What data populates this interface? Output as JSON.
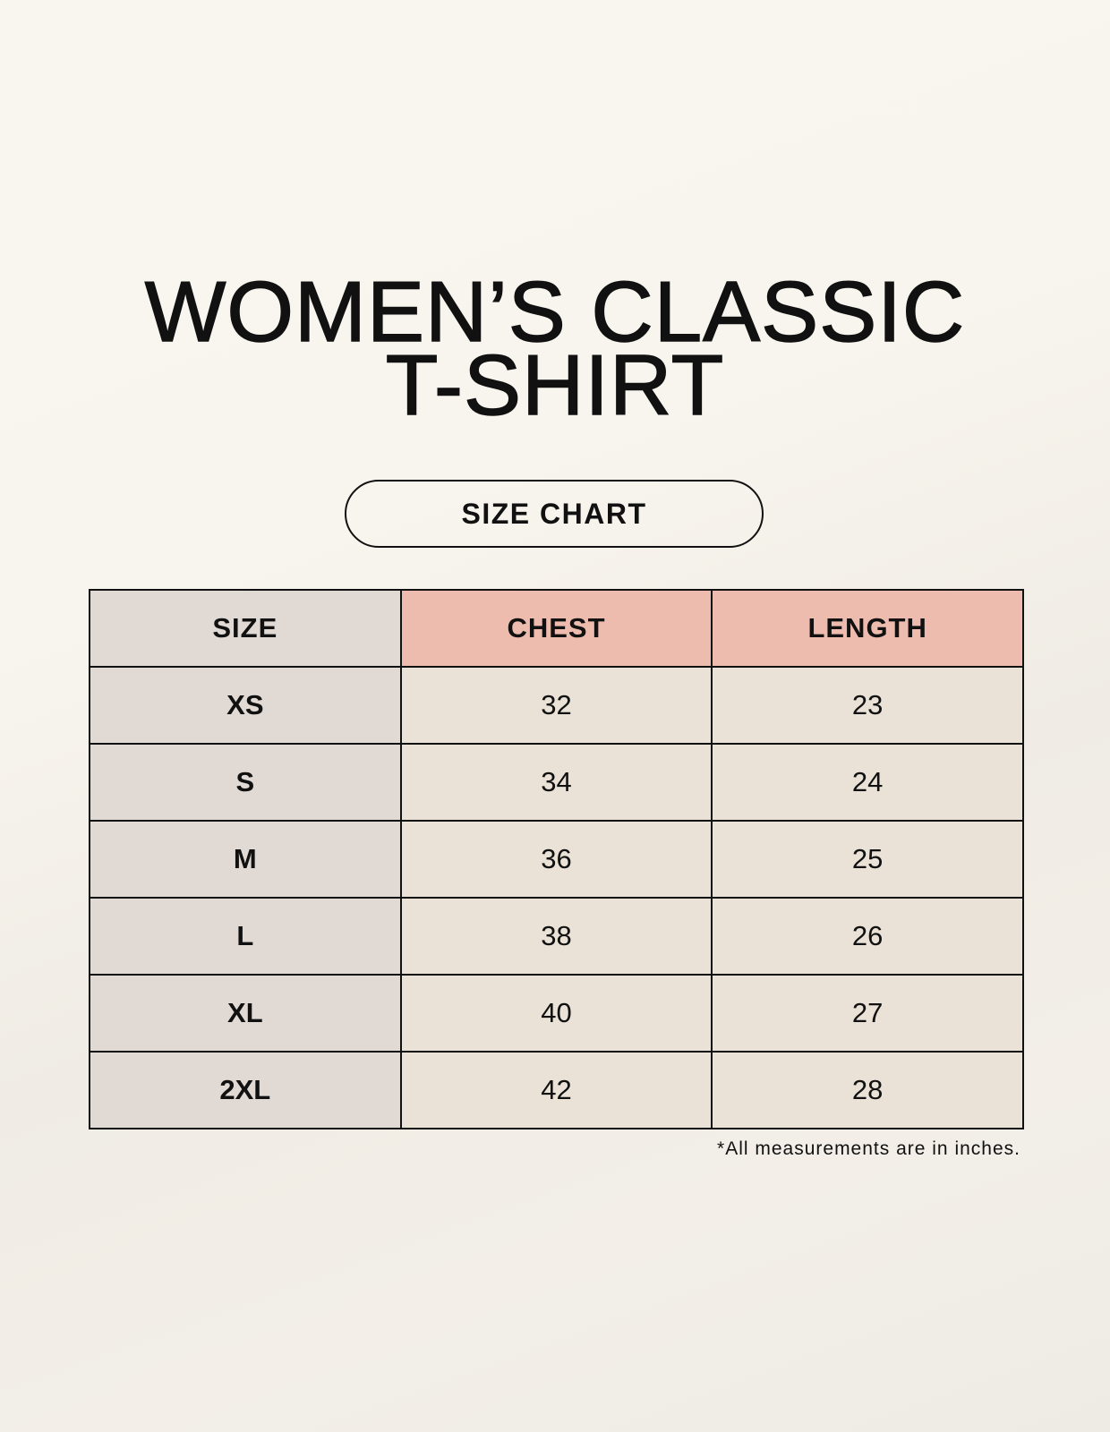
{
  "title": {
    "line1": "WOMEN’S CLASSIC",
    "line2": "T-SHIRT"
  },
  "subtitle": "SIZE CHART",
  "table": {
    "headers": [
      "SIZE",
      "CHEST",
      "LENGTH"
    ],
    "rows": [
      [
        "XS",
        "32",
        "23"
      ],
      [
        "S",
        "34",
        "24"
      ],
      [
        "M",
        "36",
        "25"
      ],
      [
        "L",
        "38",
        "26"
      ],
      [
        "XL",
        "40",
        "27"
      ],
      [
        "2XL",
        "42",
        "28"
      ]
    ]
  },
  "footnote": "*All measurements are in inches.",
  "colors": {
    "size_column": "#e1d9d3",
    "header_accent": "#eebcae",
    "value_cells": "#eae2d7"
  }
}
